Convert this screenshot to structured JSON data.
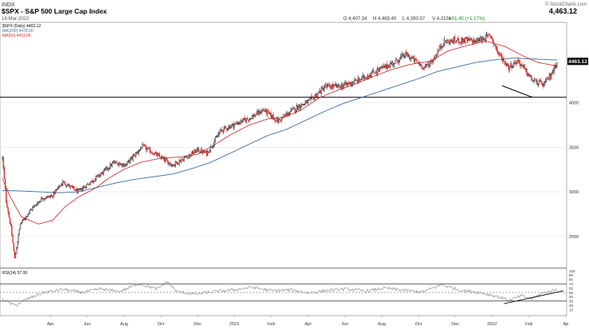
{
  "header": {
    "exchange": "INDX",
    "title": "$SPX - S&P 500 Large Cap Index",
    "date": "18-Mar-2022",
    "watermark": "© StockCharts.com",
    "last_price": "4,463.12",
    "ohlc": {
      "open": "O 4,407.34",
      "high": "H 4,465.40",
      "low": "L 4,390.57",
      "volume": "V 4.215b",
      "change": "+51.45 (+1.17%)"
    }
  },
  "legend": {
    "price": "$SPX (Daily) 4463.12",
    "ma200": "MA(200) 4478.00",
    "ma50": "MA(50) 4411.00",
    "rsi": "RSI(14) 57.00"
  },
  "price_label": "4463.12",
  "colors": {
    "up": "#000000",
    "down": "#d42020",
    "ma50": "#cc2222",
    "ma200": "#3a6ea5",
    "grid": "#e4e4e4",
    "hline": "#000000",
    "trend": "#000000",
    "rsi": "#808080",
    "price_tag": "#000000",
    "change": "#1a8a1a"
  },
  "chart_data": {
    "type": "candlestick",
    "x_labels": [
      "Apr",
      "Jun",
      "Aug",
      "Oct",
      "Dec",
      "2021",
      "Feb",
      "Apr",
      "Jun",
      "Aug",
      "Oct",
      "Dec",
      "2022",
      "Feb",
      "Ap"
    ],
    "y_ticks": [
      2500,
      3000,
      3500,
      4000
    ],
    "ylim": [
      2150,
      4900
    ],
    "horizontal_line": 4060,
    "price_anchors": [
      [
        0,
        3380
      ],
      [
        4,
        2900
      ],
      [
        9,
        2600
      ],
      [
        13,
        2250
      ],
      [
        19,
        2640
      ],
      [
        30,
        2800
      ],
      [
        42,
        2930
      ],
      [
        52,
        2950
      ],
      [
        64,
        3110
      ],
      [
        80,
        3000
      ],
      [
        104,
        3200
      ],
      [
        118,
        3330
      ],
      [
        130,
        3300
      ],
      [
        148,
        3510
      ],
      [
        165,
        3400
      ],
      [
        180,
        3300
      ],
      [
        196,
        3400
      ],
      [
        206,
        3470
      ],
      [
        216,
        3430
      ],
      [
        231,
        3690
      ],
      [
        246,
        3760
      ],
      [
        262,
        3830
      ],
      [
        276,
        3920
      ],
      [
        291,
        3790
      ],
      [
        303,
        3890
      ],
      [
        313,
        3960
      ],
      [
        325,
        4020
      ],
      [
        341,
        4180
      ],
      [
        356,
        4180
      ],
      [
        376,
        4250
      ],
      [
        396,
        4360
      ],
      [
        414,
        4450
      ],
      [
        426,
        4540
      ],
      [
        436,
        4470
      ],
      [
        446,
        4390
      ],
      [
        455,
        4480
      ],
      [
        466,
        4680
      ],
      [
        486,
        4700
      ],
      [
        500,
        4690
      ],
      [
        516,
        4750
      ],
      [
        524,
        4550
      ],
      [
        535,
        4400
      ],
      [
        545,
        4470
      ],
      [
        553,
        4350
      ],
      [
        560,
        4250
      ],
      [
        572,
        4200
      ],
      [
        580,
        4320
      ],
      [
        586,
        4463
      ]
    ],
    "ma50_anchors": [
      [
        0,
        3150
      ],
      [
        8,
        2950
      ],
      [
        20,
        2720
      ],
      [
        38,
        2640
      ],
      [
        53,
        2680
      ],
      [
        66,
        2830
      ],
      [
        80,
        2940
      ],
      [
        98,
        3040
      ],
      [
        112,
        3150
      ],
      [
        128,
        3250
      ],
      [
        146,
        3330
      ],
      [
        168,
        3380
      ],
      [
        188,
        3390
      ],
      [
        206,
        3420
      ],
      [
        223,
        3520
      ],
      [
        241,
        3640
      ],
      [
        261,
        3750
      ],
      [
        281,
        3820
      ],
      [
        299,
        3840
      ],
      [
        316,
        3920
      ],
      [
        334,
        4050
      ],
      [
        352,
        4130
      ],
      [
        371,
        4200
      ],
      [
        391,
        4290
      ],
      [
        411,
        4370
      ],
      [
        431,
        4430
      ],
      [
        451,
        4460
      ],
      [
        471,
        4580
      ],
      [
        491,
        4640
      ],
      [
        511,
        4690
      ],
      [
        531,
        4630
      ],
      [
        549,
        4530
      ],
      [
        566,
        4450
      ],
      [
        586,
        4411
      ]
    ],
    "ma200_anchors": [
      [
        0,
        3015
      ],
      [
        20,
        3010
      ],
      [
        40,
        3000
      ],
      [
        60,
        2990
      ],
      [
        80,
        3000
      ],
      [
        100,
        3050
      ],
      [
        120,
        3100
      ],
      [
        140,
        3140
      ],
      [
        160,
        3170
      ],
      [
        180,
        3200
      ],
      [
        200,
        3260
      ],
      [
        220,
        3330
      ],
      [
        240,
        3430
      ],
      [
        260,
        3530
      ],
      [
        280,
        3630
      ],
      [
        300,
        3700
      ],
      [
        320,
        3800
      ],
      [
        340,
        3900
      ],
      [
        360,
        3990
      ],
      [
        380,
        4060
      ],
      [
        400,
        4130
      ],
      [
        420,
        4200
      ],
      [
        440,
        4270
      ],
      [
        460,
        4350
      ],
      [
        480,
        4400
      ],
      [
        500,
        4450
      ],
      [
        520,
        4480
      ],
      [
        540,
        4500
      ],
      [
        560,
        4490
      ],
      [
        586,
        4478
      ]
    ],
    "trendline_price": [
      [
        528,
        4190
      ],
      [
        560,
        4060
      ]
    ],
    "rsi": {
      "ylim": [
        0,
        100
      ],
      "y_ticks": [
        10,
        20,
        30,
        40,
        50,
        60,
        70,
        80,
        90,
        100
      ],
      "bands": [
        30,
        70
      ],
      "midline": 50,
      "anchors": [
        [
          0,
          35
        ],
        [
          8,
          25
        ],
        [
          14,
          20
        ],
        [
          24,
          33
        ],
        [
          44,
          50
        ],
        [
          64,
          57
        ],
        [
          84,
          50
        ],
        [
          104,
          58
        ],
        [
          124,
          52
        ],
        [
          144,
          70
        ],
        [
          164,
          58
        ],
        [
          174,
          75
        ],
        [
          184,
          52
        ],
        [
          204,
          46
        ],
        [
          224,
          52
        ],
        [
          244,
          56
        ],
        [
          264,
          62
        ],
        [
          284,
          54
        ],
        [
          304,
          56
        ],
        [
          324,
          49
        ],
        [
          344,
          55
        ],
        [
          364,
          58
        ],
        [
          384,
          53
        ],
        [
          404,
          60
        ],
        [
          424,
          55
        ],
        [
          444,
          51
        ],
        [
          464,
          68
        ],
        [
          484,
          55
        ],
        [
          504,
          50
        ],
        [
          524,
          40
        ],
        [
          536,
          32
        ],
        [
          548,
          42
        ],
        [
          560,
          35
        ],
        [
          570,
          48
        ],
        [
          586,
          57
        ]
      ],
      "trendline": [
        [
          530,
          24
        ],
        [
          586,
          52
        ]
      ]
    }
  }
}
